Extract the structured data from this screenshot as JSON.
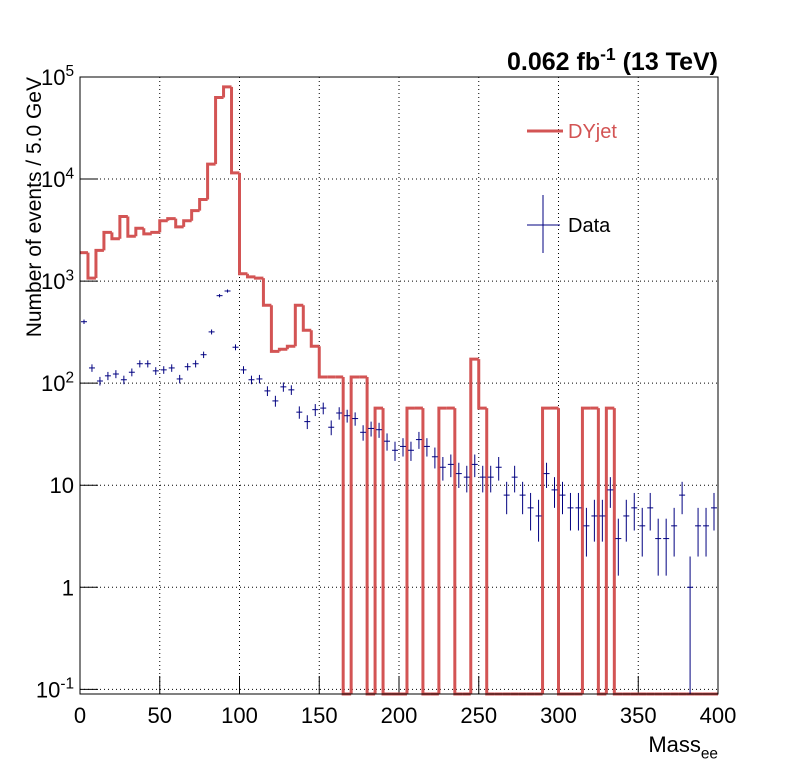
{
  "chart_data": {
    "type": "histogram",
    "title": "0.062 fb^-1 (13 TeV)",
    "x_label": "Mass_ee",
    "y_label": "Number of events / 5.0 GeV",
    "log_y": true,
    "grid": true,
    "legend": "top-right",
    "xlim": [
      0,
      400
    ],
    "xticks": [
      0,
      50,
      100,
      150,
      200,
      250,
      300,
      350,
      400
    ],
    "ylim": [
      0.09,
      100000
    ],
    "yticks": [
      {
        "value": 0.1,
        "label": "10^-1"
      },
      1,
      10,
      {
        "value": 100,
        "label": "10^2"
      },
      {
        "value": 1000,
        "label": "10^3"
      },
      {
        "value": 10000,
        "label": "10^4"
      },
      {
        "value": 100000,
        "label": "10^5"
      }
    ],
    "bins": [
      0,
      5,
      10,
      15,
      20,
      25,
      30,
      35,
      40,
      45,
      50,
      55,
      60,
      65,
      70,
      75,
      80,
      85,
      90,
      95,
      100,
      105,
      110,
      115,
      120,
      125,
      130,
      135,
      140,
      145,
      150,
      155,
      160,
      165,
      170,
      175,
      180,
      185,
      190,
      195,
      200,
      205,
      210,
      215,
      220,
      225,
      230,
      235,
      240,
      245,
      250,
      255,
      260,
      265,
      270,
      275,
      280,
      285,
      290,
      295,
      300,
      305,
      310,
      315,
      320,
      325,
      330,
      335,
      340,
      345,
      350,
      355,
      360,
      365,
      370,
      375,
      380,
      385,
      390,
      395,
      400
    ],
    "series": [
      {
        "name": "DYjet",
        "color": "#d35454",
        "style": "step",
        "values": [
          1900,
          1070,
          2000,
          3000,
          2600,
          4300,
          2750,
          3300,
          2900,
          3000,
          3900,
          4100,
          3400,
          3900,
          4900,
          6300,
          14000,
          63000,
          80000,
          11500,
          1180,
          1100,
          1070,
          580,
          205,
          215,
          230,
          580,
          330,
          230,
          115,
          115,
          115,
          0,
          115,
          115,
          0,
          57,
          0,
          0,
          0,
          57,
          57,
          0,
          0,
          57,
          57,
          0,
          0,
          172,
          57,
          0,
          0,
          0,
          0,
          0,
          0,
          0,
          57,
          57,
          0,
          0,
          0,
          57,
          57,
          0,
          57,
          0,
          0,
          0,
          0,
          0,
          0,
          0,
          0,
          0,
          0,
          0,
          0,
          0
        ]
      },
      {
        "name": "Data",
        "color": "#000080",
        "style": "errorbar",
        "values": [
          400,
          141,
          105,
          118,
          123,
          108,
          128,
          155,
          155,
          132,
          135,
          141,
          110,
          145,
          155,
          190,
          318,
          720,
          800,
          225,
          135,
          108,
          110,
          84,
          67,
          92,
          86,
          52,
          42,
          55,
          57,
          37,
          51,
          48,
          45,
          33,
          36,
          35,
          27,
          22,
          24,
          22,
          28,
          24,
          19,
          15,
          16,
          13,
          12,
          16,
          12,
          12,
          15,
          8,
          12,
          8,
          6,
          5,
          13,
          9,
          8,
          6,
          6,
          4,
          5,
          5,
          9,
          3,
          5,
          6,
          4,
          6,
          3,
          3,
          4,
          8,
          1,
          4,
          4,
          6
        ],
        "errors": [
          20,
          11.9,
          10.2,
          10.9,
          11.1,
          10.4,
          11.3,
          12.4,
          12.4,
          11.5,
          11.6,
          11.9,
          10.5,
          12,
          12.4,
          13.8,
          17.8,
          26.8,
          28.3,
          15,
          11.6,
          10.4,
          10.5,
          9.2,
          8.2,
          9.6,
          9.3,
          7.2,
          6.5,
          7.4,
          7.5,
          6.1,
          7.1,
          6.9,
          6.7,
          5.7,
          6,
          5.9,
          5.2,
          4.7,
          4.9,
          4.7,
          5.3,
          4.9,
          4.4,
          3.9,
          4,
          3.6,
          3.5,
          4,
          3.5,
          3.5,
          3.9,
          2.8,
          3.5,
          2.8,
          2.4,
          2.2,
          3.6,
          3,
          2.8,
          2.4,
          2.4,
          2,
          2.2,
          2.2,
          3,
          1.7,
          2.2,
          2.4,
          2,
          2.4,
          1.7,
          1.7,
          2,
          2.8,
          1,
          2,
          2,
          2.4
        ]
      }
    ]
  }
}
